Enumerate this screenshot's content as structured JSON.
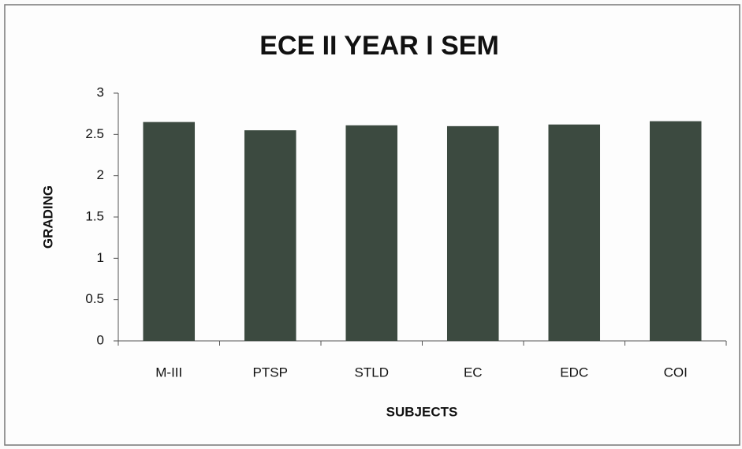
{
  "chart_data": {
    "type": "bar",
    "title": "ECE II YEAR I SEM",
    "categories": [
      "M-III",
      "PTSP",
      "STLD",
      "EC",
      "EDC",
      "COI"
    ],
    "values": [
      2.65,
      2.55,
      2.61,
      2.6,
      2.62,
      2.66
    ],
    "color": "#3c4a40",
    "xlabel": "SUBJECTS",
    "ylabel": "GRADING",
    "ylim": [
      0,
      3
    ],
    "yticks": [
      0,
      0.5,
      1,
      1.5,
      2,
      2.5,
      3
    ],
    "grid": false
  }
}
